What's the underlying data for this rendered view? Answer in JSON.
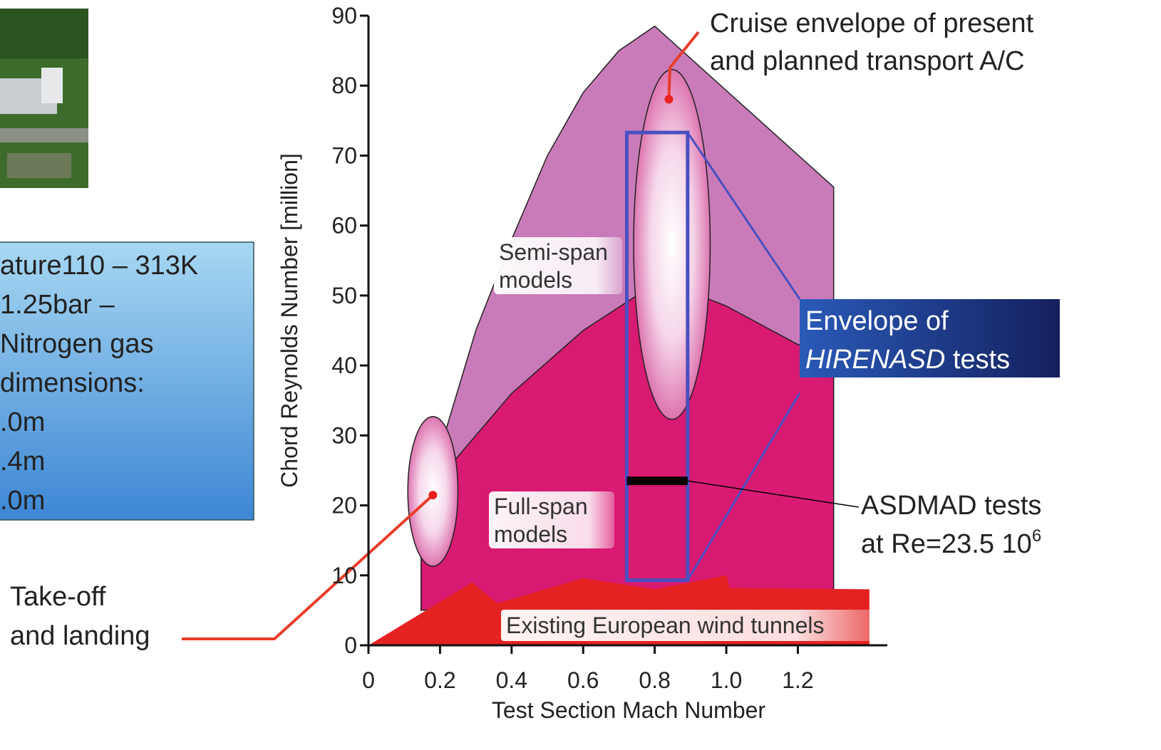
{
  "slide": {
    "info_box": [
      "ature110 – 313K",
      "1.25bar –",
      "Nitrogen gas",
      "dimensions:",
      ".0m",
      ".4m",
      ".0m"
    ],
    "takeoff_label": [
      "Take-off",
      "and landing"
    ]
  },
  "chart_data": {
    "type": "area",
    "x_label": "Test Section Mach Number",
    "y_label": "Chord Reynolds Number [million]",
    "xlim": [
      0,
      1.45
    ],
    "ylim": [
      0,
      90
    ],
    "xticks": [
      0,
      0.2,
      0.4,
      0.6,
      0.8,
      {
        "value": 1,
        "label": "1.0"
      },
      1.2
    ],
    "yticks": [
      0,
      10,
      20,
      30,
      40,
      50,
      60,
      70,
      80,
      90
    ],
    "grid": false,
    "regions": [
      {
        "color": "#c97bb9",
        "x": [
          0.147,
          0.147,
          0.2,
          0.3,
          0.4,
          0.5,
          0.6,
          0.7,
          0.8,
          1.3,
          1.3
        ],
        "y": [
          5,
          14,
          28,
          45,
          58,
          70,
          79,
          85,
          88.5,
          65.5,
          8
        ]
      },
      {
        "color": "#d81a72",
        "x": [
          0.147,
          0.147,
          0.2,
          0.25,
          0.4,
          0.6,
          0.75,
          0.9,
          1.0,
          1.2,
          1.3,
          1.3
        ],
        "y": [
          5,
          14,
          24,
          27,
          36,
          45,
          50,
          50.5,
          48.5,
          43,
          41.5,
          8
        ]
      },
      {
        "color": "#e52222",
        "x": [
          0,
          0.29,
          0.36,
          0.6,
          0.8,
          1.0,
          1.01,
          1.4,
          1.4
        ],
        "y": [
          0,
          9,
          6,
          9.6,
          8,
          10,
          8.2,
          8,
          0
        ]
      }
    ],
    "ellipses": [
      {
        "cx": 0.18,
        "cy": 22,
        "rx": 0.07,
        "ry": 10.7
      },
      {
        "cx": 0.848,
        "cy": 57.3,
        "rx": 0.107,
        "ry": 25
      }
    ],
    "envelope": {
      "x0": 0.722,
      "x1": 0.892,
      "y0": 9.3,
      "y1": 73.3,
      "color": "#4a4fc0"
    },
    "asdmad_bar": {
      "x0": 0.722,
      "x1": 0.892,
      "y": 23.5
    },
    "annotations": {
      "cruise": [
        "Cruise envelope of present",
        "and planned transport A/C"
      ],
      "semi_span": [
        "Semi-span",
        "models"
      ],
      "full_span": [
        "Full-span",
        "models"
      ],
      "tunnels": "Existing European wind tunnels",
      "hirenasd": {
        "line1": "Envelope of",
        "italic": "HIRENASD",
        "rest": "tests"
      },
      "asdmad": {
        "line1": "ASDMAD tests",
        "line2": "at Re=23.5 10",
        "exponent": "6"
      }
    }
  }
}
